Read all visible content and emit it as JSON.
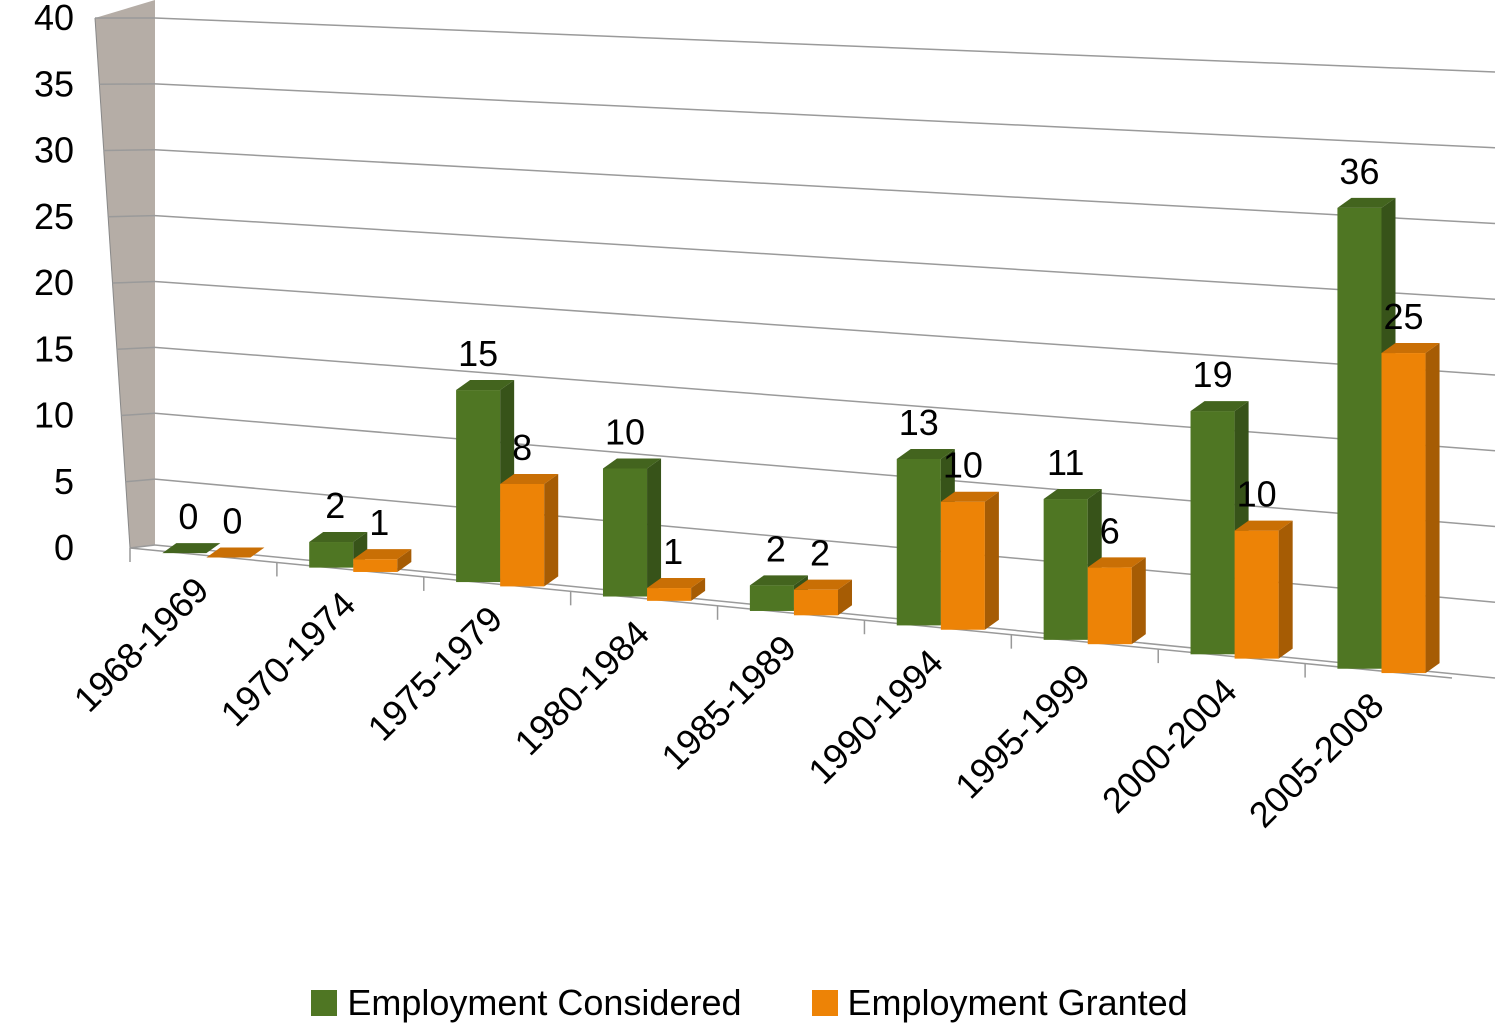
{
  "chart_data": {
    "type": "bar",
    "title": "",
    "xlabel": "",
    "ylabel": "",
    "ylim": [
      0,
      40
    ],
    "yticks": [
      0,
      5,
      10,
      15,
      20,
      25,
      30,
      35,
      40
    ],
    "grid": true,
    "legend_position": "bottom",
    "categories": [
      "1968-1969",
      "1970-1974",
      "1975-1979",
      "1980-1984",
      "1985-1989",
      "1990-1994",
      "1995-1999",
      "2000-2004",
      "2005-2008"
    ],
    "series": [
      {
        "name": "Employment Considered",
        "color": "#4f7623",
        "values": [
          0,
          2,
          15,
          10,
          2,
          13,
          11,
          19,
          36
        ]
      },
      {
        "name": "Employment Granted",
        "color": "#ed8306",
        "values": [
          0,
          1,
          8,
          1,
          2,
          10,
          6,
          10,
          25
        ]
      }
    ]
  }
}
